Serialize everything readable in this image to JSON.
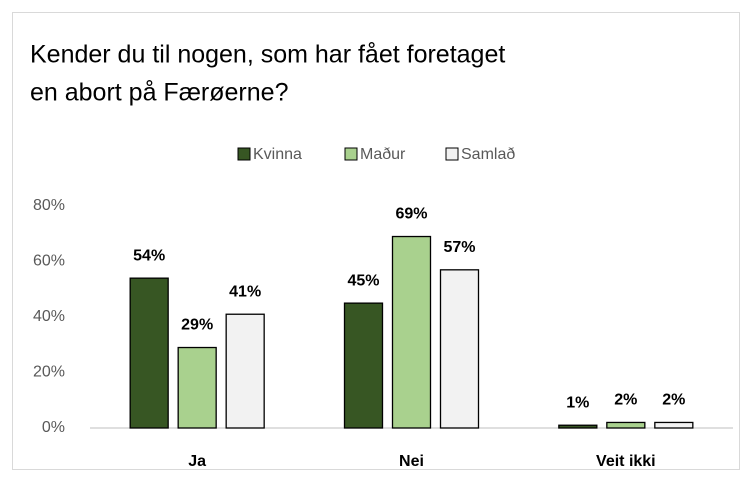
{
  "chart_data": {
    "type": "bar",
    "title": [
      "Kender du til nogen, som har fået foretaget",
      "en abort på Færøerne?"
    ],
    "categories": [
      "Ja",
      "Nei",
      "Veit ikki"
    ],
    "series": [
      {
        "name": "Kvinna",
        "color": "#375623",
        "values": [
          54,
          45,
          1
        ],
        "value_labels": [
          "54%",
          "45%",
          "1%"
        ]
      },
      {
        "name": "Maður",
        "color": "#a9d18e",
        "values": [
          29,
          69,
          2
        ],
        "value_labels": [
          "29%",
          "69%",
          "2%"
        ]
      },
      {
        "name": "Samlað",
        "color": "#f2f2f2",
        "values": [
          41,
          57,
          2
        ],
        "value_labels": [
          "41%",
          "57%",
          "2%"
        ]
      }
    ],
    "ylim": [
      0,
      80
    ],
    "yticks": [
      {
        "value": 0,
        "label": "0%"
      },
      {
        "value": 20,
        "label": "20%"
      },
      {
        "value": 40,
        "label": "40%"
      },
      {
        "value": 60,
        "label": "60%"
      },
      {
        "value": 80,
        "label": "80%"
      }
    ],
    "grid": false,
    "legend": "top"
  }
}
